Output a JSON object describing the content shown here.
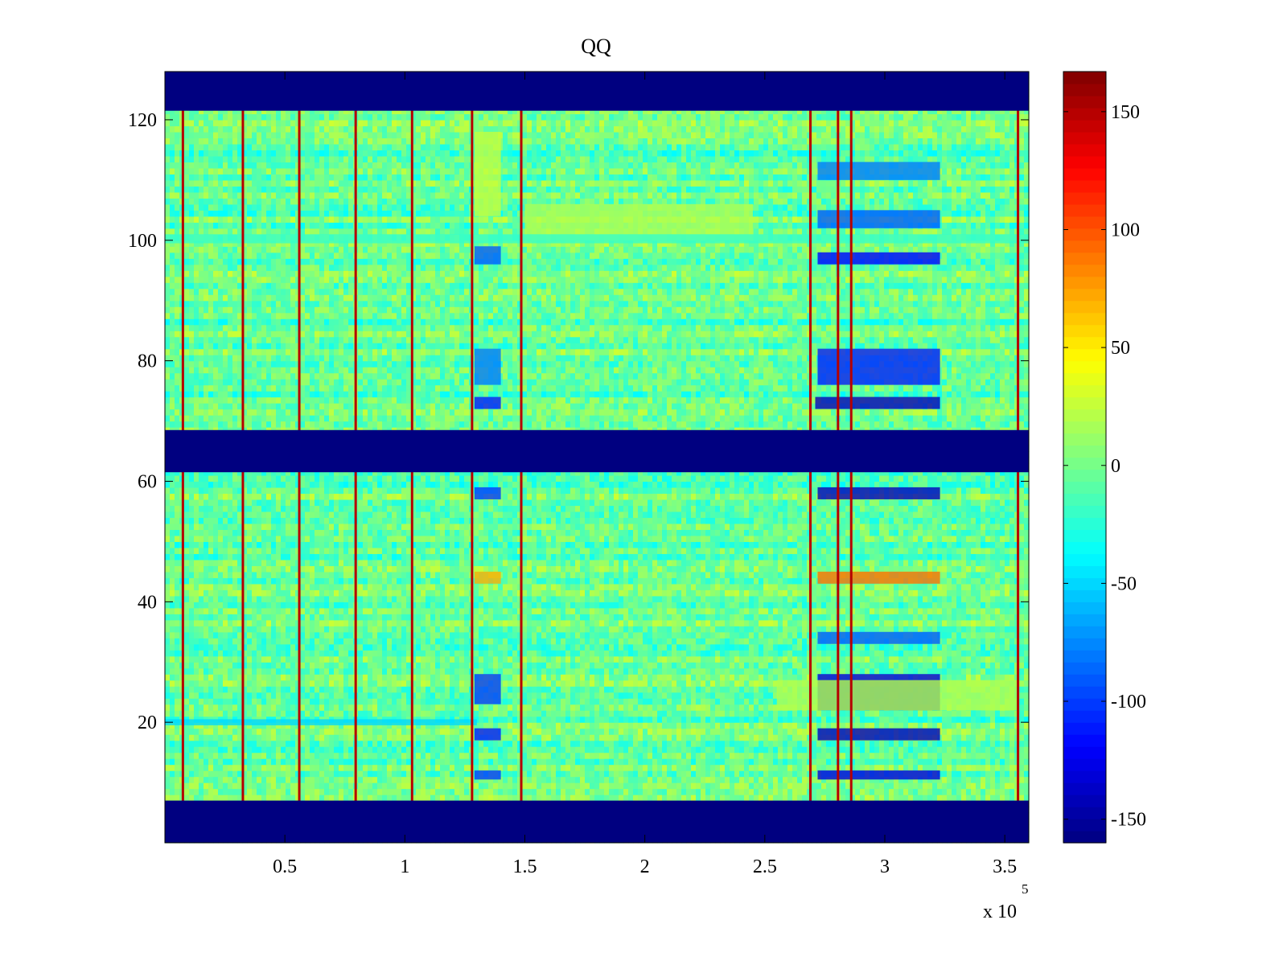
{
  "chart_data": {
    "type": "heatmap",
    "title": "QQ",
    "xlabel": "",
    "ylabel": "",
    "x_exponent_label": {
      "base": "x 10",
      "exponent": "5"
    },
    "xlim": [
      0,
      360000
    ],
    "ylim": [
      0,
      128
    ],
    "clim": [
      -160,
      167
    ],
    "colormap": "jet",
    "grid": false,
    "colorbar": {
      "position": "right"
    },
    "x_ticks": [
      {
        "value": 50000,
        "label": "0.5"
      },
      {
        "value": 100000,
        "label": "1"
      },
      {
        "value": 150000,
        "label": "1.5"
      },
      {
        "value": 200000,
        "label": "2"
      },
      {
        "value": 250000,
        "label": "2.5"
      },
      {
        "value": 300000,
        "label": "3"
      },
      {
        "value": 350000,
        "label": "3.5"
      }
    ],
    "y_ticks": [
      {
        "value": 20,
        "label": "20"
      },
      {
        "value": 40,
        "label": "40"
      },
      {
        "value": 60,
        "label": "60"
      },
      {
        "value": 80,
        "label": "80"
      },
      {
        "value": 100,
        "label": "100"
      },
      {
        "value": 120,
        "label": "120"
      }
    ],
    "colorbar_ticks": [
      {
        "value": 150,
        "label": "150"
      },
      {
        "value": 100,
        "label": "100"
      },
      {
        "value": 50,
        "label": "50"
      },
      {
        "value": 0,
        "label": "0"
      },
      {
        "value": -50,
        "label": "-50"
      },
      {
        "value": -100,
        "label": "-100"
      },
      {
        "value": -150,
        "label": "-150"
      }
    ],
    "background_mean": -5,
    "empty_row_bands": [
      {
        "y_range": [
          0,
          7
        ],
        "value": -160
      },
      {
        "y_range": [
          61.5,
          68.5
        ],
        "value": -160
      },
      {
        "y_range": [
          121.5,
          128
        ],
        "value": -160
      }
    ],
    "spike_columns_x": [
      7500,
      32500,
      56000,
      79500,
      103000,
      128000,
      148500,
      269000,
      280500,
      286000,
      355500
    ],
    "regions": [
      {
        "x_range": [
          129000,
          140000
        ],
        "y_range": [
          104,
          118
        ],
        "value": 25
      },
      {
        "x_range": [
          129000,
          140000
        ],
        "y_range": [
          96,
          99
        ],
        "value": -90
      },
      {
        "x_range": [
          129000,
          140000
        ],
        "y_range": [
          76,
          82
        ],
        "value": -80
      },
      {
        "x_range": [
          129000,
          140000
        ],
        "y_range": [
          72,
          74
        ],
        "value": -110
      },
      {
        "x_range": [
          129000,
          140000
        ],
        "y_range": [
          57,
          59
        ],
        "value": -100
      },
      {
        "x_range": [
          129000,
          140000
        ],
        "y_range": [
          43,
          45
        ],
        "value": 70
      },
      {
        "x_range": [
          129000,
          140000
        ],
        "y_range": [
          23,
          28
        ],
        "value": -100
      },
      {
        "x_range": [
          129000,
          140000
        ],
        "y_range": [
          17,
          19
        ],
        "value": -110
      },
      {
        "x_range": [
          129000,
          140000
        ],
        "y_range": [
          10.5,
          12
        ],
        "value": -100
      },
      {
        "x_range": [
          150000,
          245000
        ],
        "y_range": [
          100,
          106
        ],
        "value": 20
      },
      {
        "x_range": [
          272000,
          323000
        ],
        "y_range": [
          110,
          113
        ],
        "value": -80
      },
      {
        "x_range": [
          272000,
          323000
        ],
        "y_range": [
          102,
          105
        ],
        "value": -90
      },
      {
        "x_range": [
          272000,
          323000
        ],
        "y_range": [
          96,
          98
        ],
        "value": -120
      },
      {
        "x_range": [
          272000,
          323000
        ],
        "y_range": [
          76,
          82
        ],
        "value": -110
      },
      {
        "x_range": [
          271000,
          323000
        ],
        "y_range": [
          72,
          74
        ],
        "value": -140
      },
      {
        "x_range": [
          272000,
          323000
        ],
        "y_range": [
          57,
          59
        ],
        "value": -140
      },
      {
        "x_range": [
          272000,
          323000
        ],
        "y_range": [
          43,
          45
        ],
        "value": 90
      },
      {
        "x_range": [
          272000,
          323000
        ],
        "y_range": [
          33,
          35
        ],
        "value": -90
      },
      {
        "x_range": [
          272000,
          323000
        ],
        "y_range": [
          22,
          28
        ],
        "value": -130
      },
      {
        "x_range": [
          272000,
          323000
        ],
        "y_range": [
          17,
          19
        ],
        "value": -140
      },
      {
        "x_range": [
          272000,
          323000
        ],
        "y_range": [
          10.5,
          12
        ],
        "value": -130
      },
      {
        "x_range": [
          255000,
          355000
        ],
        "y_range": [
          22,
          27
        ],
        "value": 20
      },
      {
        "x_range": [
          0,
          360000
        ],
        "y_range": [
          99.5,
          101
        ],
        "value": -20
      },
      {
        "x_range": [
          0,
          130000
        ],
        "y_range": [
          19.5,
          20.5
        ],
        "value": -50
      }
    ]
  }
}
